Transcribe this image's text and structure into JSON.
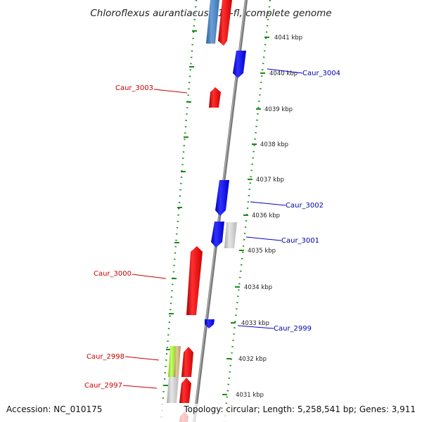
{
  "header": {
    "title": "Chloroflexus aurantiacus J-10-fl, complete genome"
  },
  "footer": {
    "accession": "Accession: NC_010175",
    "summary": "Topology: circular; Length: 5,258,541 bp; Genes: 3,911"
  },
  "colors": {
    "forward_gene": "#ff0000",
    "reverse_gene": "#0000ff",
    "label_forward": "#cc0000",
    "label_reverse": "#0000aa",
    "tick_green": "#1a8a1a",
    "backbone": "#888888",
    "other_gene_gray": "#c8c8c8",
    "other_gene_steel": "#4a82c0",
    "other_gene_lime": "#99e033",
    "other_gene_tan": "#c8b078"
  },
  "ruler": {
    "labels": [
      "4041 kbp",
      "4040 kbp",
      "4039 kbp",
      "4038 kbp",
      "4037 kbp",
      "4036 kbp",
      "4035 kbp",
      "4034 kbp",
      "4033 kbp",
      "4032 kbp",
      "4031 kbp"
    ]
  },
  "gene_labels": {
    "caur_3004": "Caur_3004",
    "caur_3003": "Caur_3003",
    "caur_3002": "Caur_3002",
    "caur_3001": "Caur_3001",
    "caur_3000": "Caur_3000",
    "caur_2999": "Caur_2999",
    "caur_2998": "Caur_2998",
    "caur_2997": "Caur_2997"
  }
}
